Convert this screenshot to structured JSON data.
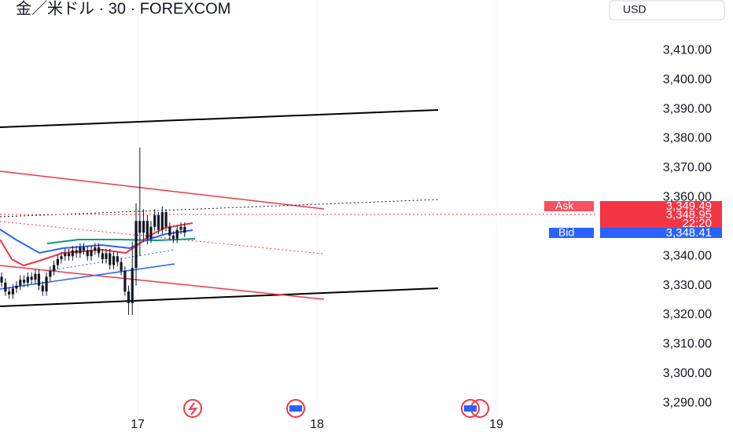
{
  "chart_data": {
    "type": "candlestick",
    "title": "金／米ドル · 30 · FOREXCOM",
    "currency": "USD",
    "xlim": [
      16.232,
      19.566
    ],
    "xticks": [
      17,
      18,
      19
    ],
    "ylim": [
      3287,
      3418
    ],
    "yticks": [
      {
        "value": 3290,
        "label": "3,290.00"
      },
      {
        "value": 3300,
        "label": "3,300.00"
      },
      {
        "value": 3310,
        "label": "3,310.00"
      },
      {
        "value": 3320,
        "label": "3,320.00"
      },
      {
        "value": 3330,
        "label": "3,330.00"
      },
      {
        "value": 3340,
        "label": "3,340.00"
      },
      {
        "value": 3360,
        "label": "3,360.00"
      },
      {
        "value": 3370,
        "label": "3,370.00"
      },
      {
        "value": 3380,
        "label": "3,380.00"
      },
      {
        "value": 3390,
        "label": "3,390.00"
      },
      {
        "value": 3400,
        "label": "3,400.00"
      },
      {
        "value": 3410,
        "label": "3,410.00"
      }
    ],
    "grid": true,
    "color": "#131722",
    "x": [
      16.241,
      16.262,
      16.283,
      16.304,
      16.324,
      16.345,
      16.366,
      16.387,
      16.408,
      16.429,
      16.449,
      16.47,
      16.491,
      16.512,
      16.533,
      16.554,
      16.574,
      16.595,
      16.616,
      16.637,
      16.658,
      16.679,
      16.699,
      16.72,
      16.741,
      16.762,
      16.783,
      16.804,
      16.824,
      16.845,
      16.866,
      16.887,
      16.908,
      16.929,
      16.949,
      16.97,
      16.991,
      17.012,
      17.033,
      17.054,
      17.074,
      17.095,
      17.116,
      17.137,
      17.158,
      17.179,
      17.199,
      17.22,
      17.241,
      17.262
    ],
    "open": [
      3333,
      3331,
      3328,
      3327,
      3329,
      3330,
      3332,
      3331,
      3333,
      3332,
      3334,
      3330,
      3328,
      3333,
      3335,
      3337,
      3339,
      3340,
      3341,
      3340,
      3342,
      3341,
      3343,
      3342,
      3340,
      3342,
      3343,
      3341,
      3339,
      3341,
      3337,
      3340,
      3338,
      3335,
      3328,
      3324,
      3336,
      3352,
      3348,
      3352,
      3346,
      3350,
      3354,
      3349,
      3355,
      3350,
      3347,
      3346,
      3349,
      3350
    ],
    "high": [
      3334.5,
      3332.5,
      3329.5,
      3330.5,
      3331.5,
      3333.5,
      3333.5,
      3334.5,
      3334.5,
      3335.5,
      3335.5,
      3331.5,
      3334.5,
      3336.5,
      3338.5,
      3340.5,
      3341.5,
      3342.5,
      3342.5,
      3343.5,
      3343.5,
      3344.5,
      3344.5,
      3343.5,
      3343.5,
      3344.5,
      3344.5,
      3342.5,
      3342.5,
      3342.5,
      3341.5,
      3341.5,
      3339.5,
      3336.5,
      3330,
      3345,
      3358,
      3377,
      3356,
      3354,
      3352,
      3356,
      3355,
      3357,
      3356,
      3351.5,
      3348.5,
      3350.5,
      3351.5,
      3351.5
    ],
    "low": [
      3329.5,
      3326.5,
      3325.5,
      3325.5,
      3327.5,
      3328.5,
      3329.5,
      3329.5,
      3330.5,
      3330.5,
      3328.5,
      3326.5,
      3326.5,
      3331.5,
      3333.5,
      3335.5,
      3337.5,
      3338.5,
      3338.5,
      3338.5,
      3339.5,
      3339.5,
      3340.5,
      3338.5,
      3338.5,
      3340.5,
      3339.5,
      3337.5,
      3337.5,
      3335.5,
      3335.5,
      3336.5,
      3333.5,
      3326.5,
      3320,
      3320,
      3330,
      3340,
      3345,
      3344,
      3344.5,
      3348.5,
      3347.5,
      3347.5,
      3348.5,
      3345.5,
      3344.5,
      3344.5,
      3347.5,
      3346.5
    ],
    "close": [
      3331,
      3328,
      3327,
      3329,
      3330,
      3332,
      3331,
      3333,
      3332,
      3334,
      3330,
      3328,
      3333,
      3335,
      3337,
      3339,
      3340,
      3341,
      3340,
      3342,
      3341,
      3343,
      3342,
      3340,
      3342,
      3343,
      3341,
      3339,
      3341,
      3337,
      3340,
      3338,
      3335,
      3328,
      3324,
      3336,
      3352,
      3348,
      3352,
      3346,
      3350,
      3354,
      3349,
      3355,
      3350,
      3347,
      3346,
      3349,
      3350,
      3348
    ],
    "quote": {
      "ask_label": "Ask",
      "ask": "3,349.49",
      "last": "3,348.95",
      "countdown": "22:20",
      "bid_label": "Bid",
      "bid": "3,348.41"
    }
  }
}
